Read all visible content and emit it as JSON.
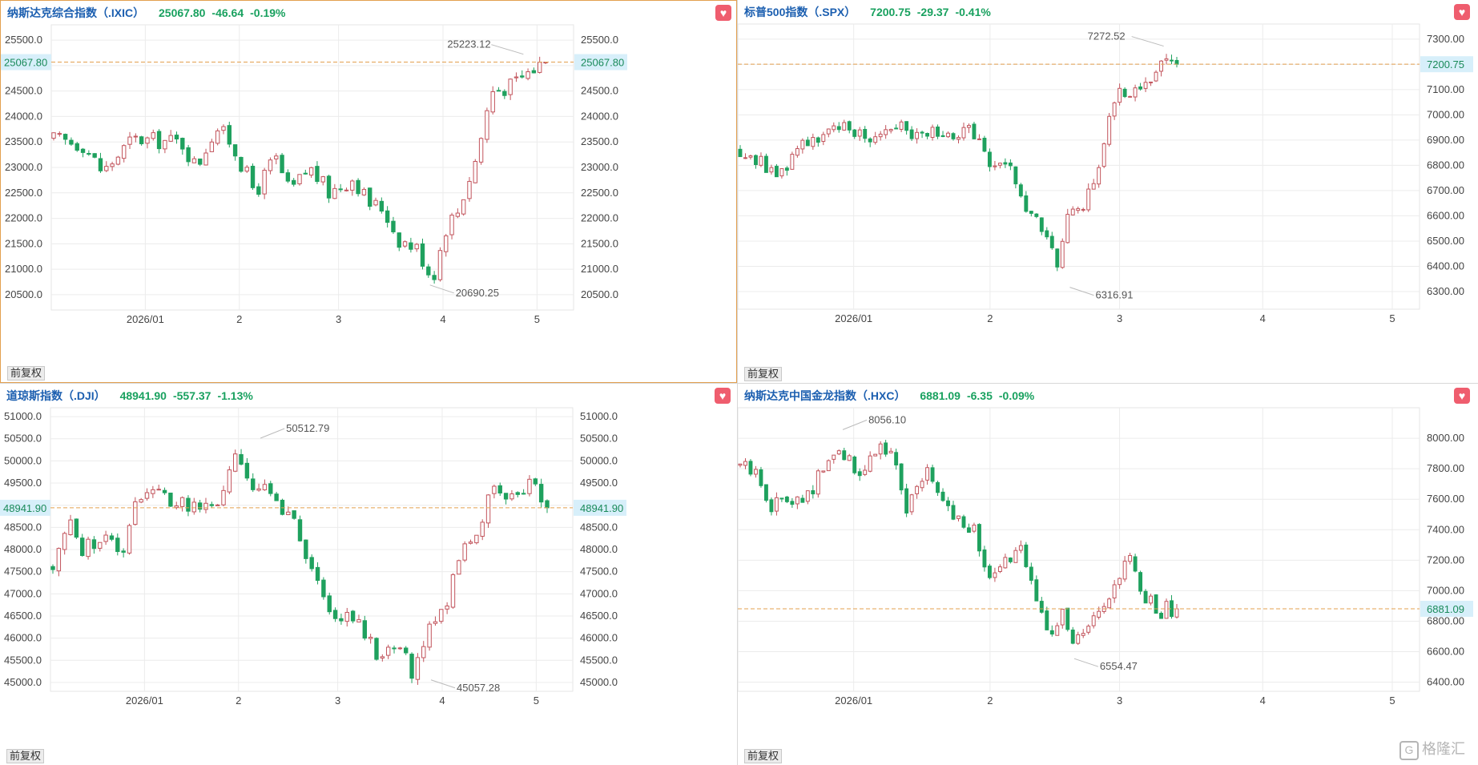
{
  "colors": {
    "up": "#c2545c",
    "down": "#1fa15e",
    "price_line": "#e3a04f",
    "grid": "#ececec",
    "label_bg": "#d7effa"
  },
  "panels": [
    {
      "name": "纳斯达克综合指数（.IXIC）",
      "price": "25067.80",
      "change": "-46.64",
      "pct": "-0.19%",
      "price_tag": "25067.80",
      "mode_label": "前复权",
      "favorite_icon": "heart-icon",
      "active": true,
      "chart_data": {
        "type": "candlestick",
        "ylim": [
          20200,
          25800
        ],
        "yticks": [
          20500,
          21000,
          21500,
          22000,
          22500,
          23000,
          23500,
          24000,
          24500,
          25000,
          25500
        ],
        "tick_format": "2dp_1",
        "y_axis_sides": [
          "left",
          "right"
        ],
        "current": 25067.8,
        "high_label": "25223.12",
        "high_value": 25223.12,
        "low_label": "20690.25",
        "low_value": 20690.25,
        "months": [
          "2026/01",
          "2",
          "3",
          "4",
          "5"
        ],
        "month_frac": [
          0.18,
          0.36,
          0.55,
          0.75,
          0.93
        ],
        "path": [
          [
            0,
            23550
          ],
          [
            0.06,
            23450
          ],
          [
            0.1,
            22900
          ],
          [
            0.16,
            23550
          ],
          [
            0.26,
            23500
          ],
          [
            0.29,
            23000
          ],
          [
            0.33,
            23800
          ],
          [
            0.36,
            23500
          ],
          [
            0.41,
            22500
          ],
          [
            0.45,
            23200
          ],
          [
            0.48,
            22500
          ],
          [
            0.52,
            23000
          ],
          [
            0.56,
            22500
          ],
          [
            0.61,
            22800
          ],
          [
            0.64,
            22300
          ],
          [
            0.67,
            22200
          ],
          [
            0.7,
            21600
          ],
          [
            0.74,
            21400
          ],
          [
            0.77,
            20800
          ],
          [
            0.8,
            21900
          ],
          [
            0.82,
            22100
          ],
          [
            0.86,
            23200
          ],
          [
            0.89,
            24500
          ],
          [
            0.93,
            24600
          ],
          [
            0.97,
            24900
          ],
          [
            1.0,
            25100
          ]
        ],
        "high_frac": 0.955,
        "low_frac": 0.765
      }
    },
    {
      "name": "标普500指数（.SPX）",
      "price": "7200.75",
      "change": "-29.37",
      "pct": "-0.41%",
      "price_tag": "7200.75",
      "mode_label": "前复权",
      "favorite_icon": "heart-icon",
      "active": false,
      "chart_data": {
        "type": "candlestick",
        "ylim": [
          6230,
          7360
        ],
        "yticks": [
          6300,
          6400,
          6500,
          6600,
          6700,
          6800,
          6900,
          7000,
          7100,
          7200,
          7300
        ],
        "tick_format": "2dp",
        "y_axis_sides": [
          "right"
        ],
        "current": 7200.75,
        "high_label": "7272.52",
        "high_value": 7272.52,
        "low_label": "6316.91",
        "low_value": 6316.91,
        "months": [
          "2026/01",
          "2",
          "3",
          "4",
          "5"
        ],
        "month_frac": [
          0.17,
          0.37,
          0.56,
          0.77,
          0.96
        ],
        "path": [
          [
            0,
            6860
          ],
          [
            0.06,
            6800
          ],
          [
            0.09,
            6750
          ],
          [
            0.14,
            6900
          ],
          [
            0.22,
            6930
          ],
          [
            0.26,
            6950
          ],
          [
            0.3,
            6900
          ],
          [
            0.33,
            6950
          ],
          [
            0.36,
            6980
          ],
          [
            0.41,
            6900
          ],
          [
            0.45,
            6950
          ],
          [
            0.49,
            6880
          ],
          [
            0.53,
            6950
          ],
          [
            0.58,
            6780
          ],
          [
            0.62,
            6780
          ],
          [
            0.66,
            6600
          ],
          [
            0.69,
            6550
          ],
          [
            0.73,
            6400
          ],
          [
            0.75,
            6600
          ],
          [
            0.78,
            6620
          ],
          [
            0.82,
            6800
          ],
          [
            0.86,
            7080
          ],
          [
            0.9,
            7100
          ],
          [
            0.94,
            7150
          ],
          [
            0.98,
            7230
          ],
          [
            1.0,
            7200
          ]
        ],
        "high_frac": 0.97,
        "low_frac": 0.755
      }
    },
    {
      "name": "道琼斯指数（.DJI）",
      "price": "48941.90",
      "change": "-557.37",
      "pct": "-1.13%",
      "price_tag": "48941.90",
      "mode_label": "前复权",
      "favorite_icon": "heart-icon",
      "active": false,
      "chart_data": {
        "type": "candlestick",
        "ylim": [
          44800,
          51200
        ],
        "yticks": [
          45000,
          45500,
          46000,
          46500,
          47000,
          47500,
          48000,
          48500,
          49000,
          49500,
          50000,
          50500,
          51000
        ],
        "tick_format": "2dp_1",
        "y_axis_sides": [
          "left",
          "right"
        ],
        "current": 48941.9,
        "high_label": "50512.79",
        "high_value": 50512.79,
        "low_label": "45057.28",
        "low_value": 45057.28,
        "months": [
          "2026/01",
          "2",
          "3",
          "4",
          "5"
        ],
        "month_frac": [
          0.18,
          0.36,
          0.55,
          0.75,
          0.93
        ],
        "path": [
          [
            0,
            47600
          ],
          [
            0.03,
            48600
          ],
          [
            0.06,
            48000
          ],
          [
            0.1,
            48300
          ],
          [
            0.14,
            47900
          ],
          [
            0.17,
            49300
          ],
          [
            0.2,
            49300
          ],
          [
            0.25,
            49100
          ],
          [
            0.29,
            48900
          ],
          [
            0.33,
            49000
          ],
          [
            0.37,
            50000
          ],
          [
            0.41,
            49400
          ],
          [
            0.45,
            49200
          ],
          [
            0.49,
            48500
          ],
          [
            0.53,
            47200
          ],
          [
            0.58,
            46500
          ],
          [
            0.62,
            46400
          ],
          [
            0.66,
            45600
          ],
          [
            0.7,
            45900
          ],
          [
            0.73,
            45100
          ],
          [
            0.76,
            46400
          ],
          [
            0.79,
            46500
          ],
          [
            0.82,
            47900
          ],
          [
            0.86,
            48500
          ],
          [
            0.89,
            49300
          ],
          [
            0.93,
            49100
          ],
          [
            0.97,
            49500
          ],
          [
            1.0,
            48940
          ]
        ],
        "high_frac": 0.42,
        "low_frac": 0.765
      }
    },
    {
      "name": "纳斯达克中国金龙指数（.HXC）",
      "price": "6881.09",
      "change": "-6.35",
      "pct": "-0.09%",
      "price_tag": "6881.09",
      "mode_label": "前复权",
      "favorite_icon": "heart-icon",
      "active": false,
      "chart_data": {
        "type": "candlestick",
        "ylim": [
          6340,
          8200
        ],
        "yticks": [
          6400,
          6600,
          6800,
          7000,
          7200,
          7400,
          7600,
          7800,
          8000
        ],
        "tick_format": "2dp",
        "y_axis_sides": [
          "right"
        ],
        "current": 6881.09,
        "high_label": "8056.10",
        "high_value": 8056.1,
        "low_label": "6554.47",
        "low_value": 6554.47,
        "months": [
          "2026/01",
          "2",
          "3",
          "4",
          "5"
        ],
        "month_frac": [
          0.17,
          0.37,
          0.56,
          0.77,
          0.96
        ],
        "path": [
          [
            0,
            7820
          ],
          [
            0.04,
            7760
          ],
          [
            0.07,
            7560
          ],
          [
            0.12,
            7620
          ],
          [
            0.16,
            7640
          ],
          [
            0.2,
            7850
          ],
          [
            0.24,
            7900
          ],
          [
            0.27,
            7700
          ],
          [
            0.31,
            7950
          ],
          [
            0.35,
            7900
          ],
          [
            0.38,
            7550
          ],
          [
            0.43,
            7820
          ],
          [
            0.46,
            7560
          ],
          [
            0.5,
            7500
          ],
          [
            0.54,
            7380
          ],
          [
            0.57,
            7050
          ],
          [
            0.6,
            7150
          ],
          [
            0.64,
            7280
          ],
          [
            0.67,
            7000
          ],
          [
            0.71,
            6750
          ],
          [
            0.74,
            6850
          ],
          [
            0.76,
            6620
          ],
          [
            0.8,
            6750
          ],
          [
            0.83,
            6850
          ],
          [
            0.86,
            7000
          ],
          [
            0.89,
            7250
          ],
          [
            0.92,
            6950
          ],
          [
            0.96,
            6870
          ],
          [
            1.0,
            6880
          ]
        ],
        "high_frac": 0.235,
        "low_frac": 0.765
      }
    }
  ],
  "logo": {
    "mark": "G",
    "text": "格隆汇"
  }
}
